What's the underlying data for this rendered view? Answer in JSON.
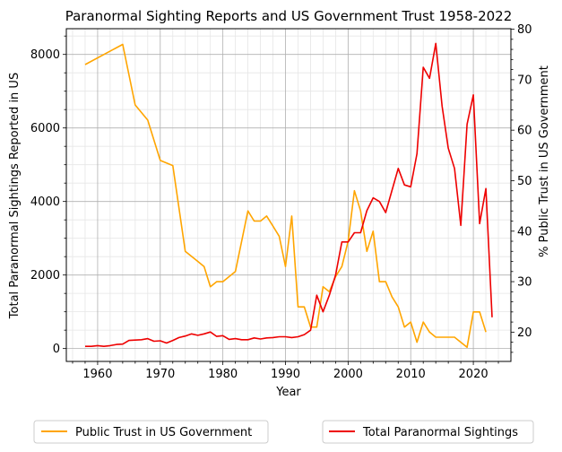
{
  "chart_data": {
    "type": "line",
    "title": "Paranormal Sighting Reports and US Government Trust 1958-2022",
    "xlabel": "Year",
    "ylabel_left": "Total Paranormal Sightings Reported in US",
    "ylabel_right": "% Public Trust in US Government",
    "xlim": [
      1955,
      2026
    ],
    "ylim_left": [
      -350,
      8700
    ],
    "ylim_right": [
      14.2,
      80.1
    ],
    "xticks": [
      1960,
      1970,
      1980,
      1990,
      2000,
      2010,
      2020
    ],
    "yticks_left": [
      0,
      2000,
      4000,
      6000,
      8000
    ],
    "yticks_right": [
      20,
      30,
      40,
      50,
      60,
      70,
      80
    ],
    "grid": true,
    "legend": "below",
    "series": [
      {
        "name": "Public Trust in US Government",
        "axis": "right",
        "color": "#FFA500",
        "x": [
          1958,
          1964,
          1966,
          1968,
          1970,
          1972,
          1974,
          1976,
          1977,
          1978,
          1979,
          1980,
          1982,
          1984,
          1985,
          1986,
          1987,
          1988,
          1989,
          1990,
          1991,
          1992,
          1993,
          1994,
          1995,
          1996,
          1997,
          1998,
          1999,
          2000,
          2001,
          2002,
          2003,
          2004,
          2005,
          2006,
          2007,
          2008,
          2009,
          2010,
          2011,
          2012,
          2013,
          2014,
          2015,
          2016,
          2017,
          2019,
          2020,
          2021,
          2022
        ],
        "y": [
          73,
          77,
          65,
          62,
          54,
          53,
          36,
          34,
          33,
          29,
          30,
          30,
          32,
          44,
          42,
          42,
          43,
          41,
          39,
          33,
          43,
          25,
          25,
          21,
          21,
          29,
          28,
          31,
          33,
          38,
          48,
          44,
          36,
          40,
          30,
          30,
          27,
          25,
          21,
          22,
          18,
          22,
          20,
          19,
          19,
          19,
          19,
          17,
          24,
          24,
          20
        ]
      },
      {
        "name": "Total Paranormal Sightings",
        "axis": "left",
        "color": "#EE0000",
        "x": [
          1958,
          1959,
          1960,
          1961,
          1962,
          1963,
          1964,
          1965,
          1966,
          1967,
          1968,
          1969,
          1970,
          1971,
          1972,
          1973,
          1974,
          1975,
          1976,
          1977,
          1978,
          1979,
          1980,
          1981,
          1982,
          1983,
          1984,
          1985,
          1986,
          1987,
          1988,
          1989,
          1990,
          1991,
          1992,
          1993,
          1994,
          1995,
          1996,
          1997,
          1998,
          1999,
          2000,
          2001,
          2002,
          2003,
          2004,
          2005,
          2006,
          2007,
          2008,
          2009,
          2010,
          2011,
          2012,
          2013,
          2014,
          2015,
          2016,
          2017,
          2018,
          2019,
          2020,
          2021,
          2022,
          2023
        ],
        "y": [
          60,
          60,
          80,
          60,
          80,
          110,
          120,
          220,
          230,
          240,
          270,
          200,
          210,
          150,
          220,
          300,
          340,
          400,
          360,
          400,
          450,
          330,
          350,
          250,
          270,
          240,
          240,
          290,
          260,
          290,
          300,
          320,
          320,
          300,
          320,
          380,
          500,
          1450,
          1000,
          1450,
          2000,
          2900,
          2900,
          3150,
          3150,
          3750,
          4100,
          4000,
          3700,
          4300,
          4900,
          4450,
          4400,
          5300,
          7650,
          7350,
          8300,
          6600,
          5450,
          4900,
          3350,
          6100,
          6900,
          3400,
          4350,
          850
        ]
      }
    ]
  }
}
